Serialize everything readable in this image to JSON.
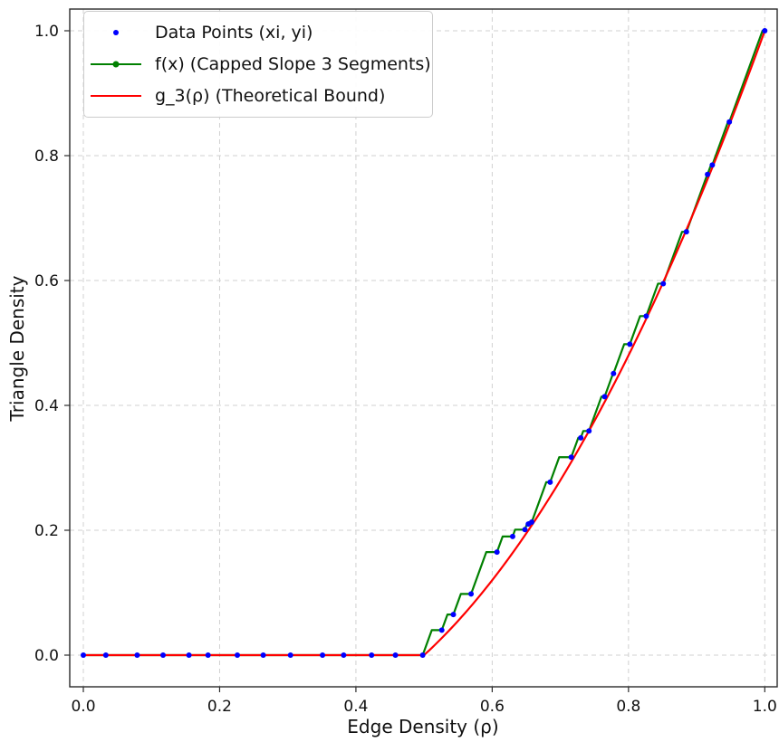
{
  "figure": {
    "background": "#ffffff",
    "title": ""
  },
  "colors": {
    "data_points": "#0000ff",
    "f_curve": "#008000",
    "bound_curve": "#ff0000",
    "grid": "#d0d0d0",
    "frame": "#2b2b2b",
    "text": "#111111",
    "legend_border": "#cccccc",
    "legend_background": "rgba(255,255,255,0.9)"
  },
  "chart_data": {
    "type": "scatter+line",
    "title": "",
    "xlabel": "Edge Density (ρ)",
    "ylabel": "Triangle Density",
    "xlim": [
      -0.02,
      1.018
    ],
    "ylim": [
      -0.051,
      1.035
    ],
    "xticks": [
      0.0,
      0.2,
      0.4,
      0.6,
      0.8,
      1.0
    ],
    "yticks": [
      0.0,
      0.2,
      0.4,
      0.6,
      0.8,
      1.0
    ],
    "xtick_labels": [
      "0.0",
      "0.2",
      "0.4",
      "0.6",
      "0.8",
      "1.0"
    ],
    "ytick_labels": [
      "0.0",
      "0.2",
      "0.4",
      "0.6",
      "0.8",
      "1.0"
    ],
    "grid": true,
    "grid_style": "dashed",
    "legend_position": "upper left",
    "series": [
      {
        "name": "Data Points (xi, yi)",
        "type": "scatter",
        "legend_marker": "dot",
        "color": "#0000ff",
        "marker_radius_px": 3,
        "points": [
          [
            0.0,
            0.0
          ],
          [
            0.033,
            0.0
          ],
          [
            0.079,
            0.0
          ],
          [
            0.117,
            0.0
          ],
          [
            0.155,
            0.0
          ],
          [
            0.183,
            0.0
          ],
          [
            0.226,
            0.0
          ],
          [
            0.264,
            0.0
          ],
          [
            0.304,
            0.0
          ],
          [
            0.351,
            0.0
          ],
          [
            0.382,
            0.0
          ],
          [
            0.423,
            0.0
          ],
          [
            0.458,
            0.0
          ],
          [
            0.498,
            0.0
          ],
          [
            0.526,
            0.04
          ],
          [
            0.543,
            0.065
          ],
          [
            0.569,
            0.098
          ],
          [
            0.607,
            0.165
          ],
          [
            0.63,
            0.19
          ],
          [
            0.648,
            0.201
          ],
          [
            0.653,
            0.21
          ],
          [
            0.658,
            0.213
          ],
          [
            0.685,
            0.277
          ],
          [
            0.716,
            0.317
          ],
          [
            0.73,
            0.348
          ],
          [
            0.742,
            0.359
          ],
          [
            0.765,
            0.414
          ],
          [
            0.778,
            0.451
          ],
          [
            0.802,
            0.498
          ],
          [
            0.826,
            0.543
          ],
          [
            0.851,
            0.595
          ],
          [
            0.885,
            0.678
          ],
          [
            0.916,
            0.77
          ],
          [
            0.923,
            0.785
          ],
          [
            0.948,
            0.854
          ],
          [
            1.0,
            1.0
          ]
        ]
      },
      {
        "name": "f(x) (Capped Slope 3 Segments)",
        "type": "line",
        "legend_marker": "line-dot",
        "color": "#008000",
        "line_width": 2.2,
        "slope_cap": 3,
        "description": "Piecewise curve through the data points: from each point it rises at the capped slope 3 until reaching the next point's y value, then stays flat."
      },
      {
        "name": "g_3(ρ) (Theoretical Bound)",
        "type": "line",
        "legend_marker": "line",
        "color": "#ff0000",
        "line_width": 2.2,
        "formula": "g_3(ρ) = ρ(2ρ − 1) for ρ ≥ 1/2, else 0",
        "params": {
          "threshold": 0.5
        },
        "sample_step": 0.004
      }
    ]
  }
}
